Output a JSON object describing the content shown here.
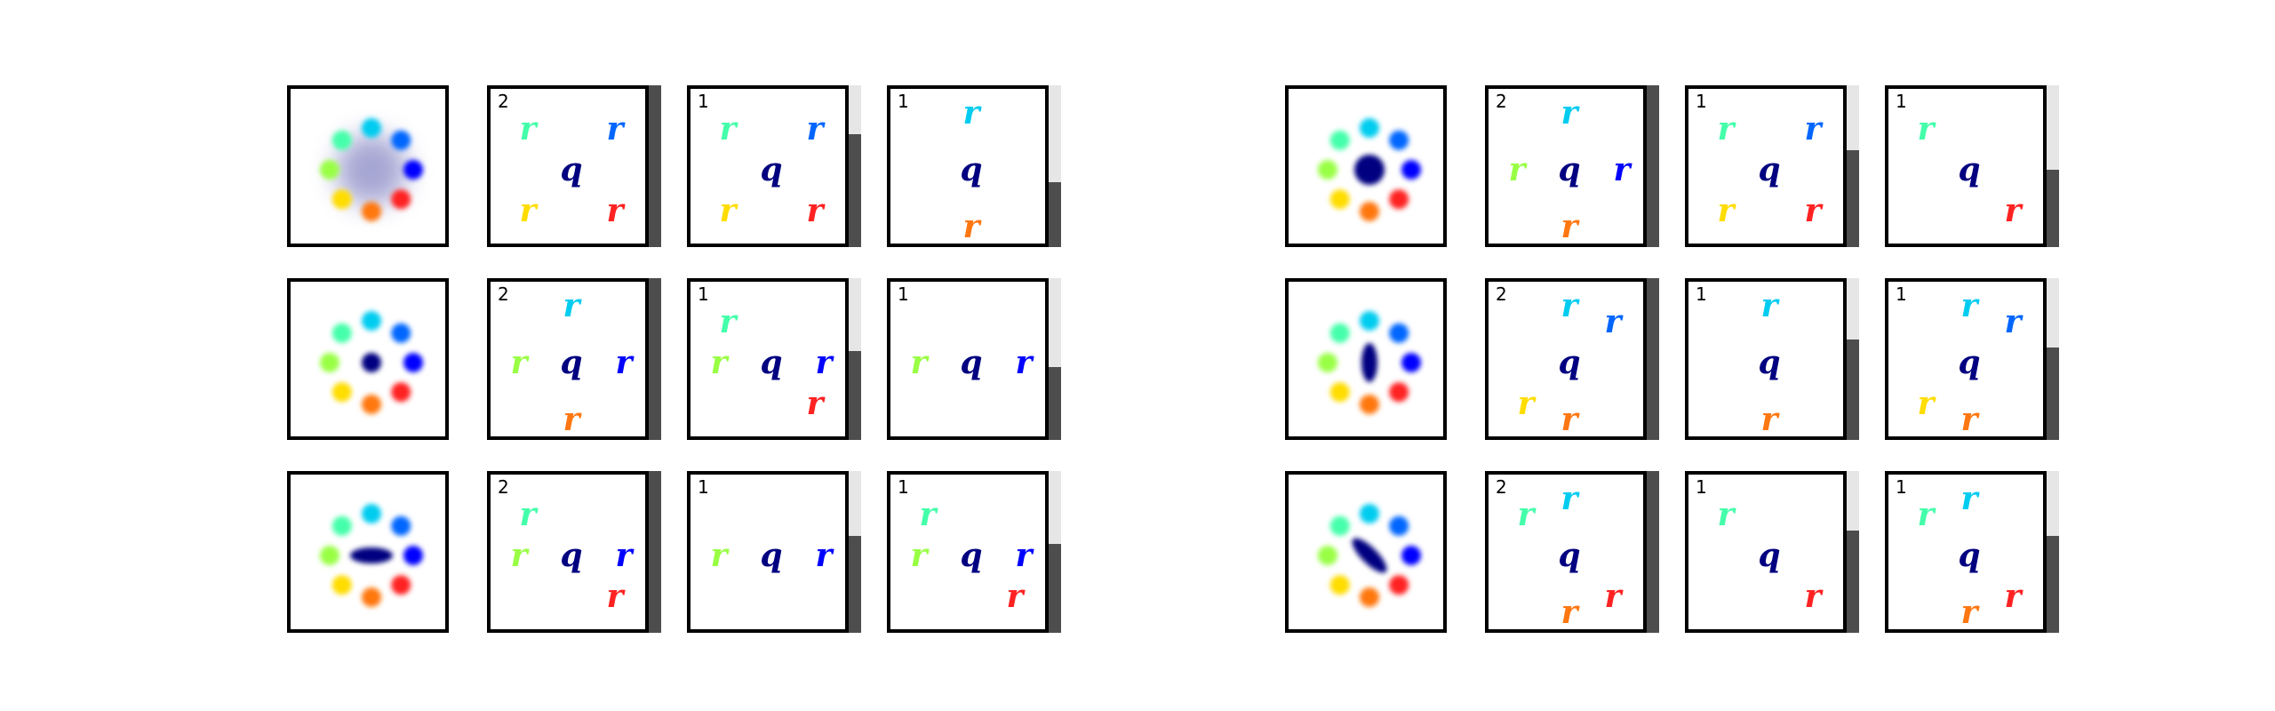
{
  "colors": {
    "c0": "#00ccf0",
    "c1": "#0066ff",
    "c2": "#0000ff",
    "c3": "#ff2222",
    "c4": "#ff7711",
    "c5": "#ffdd00",
    "c6": "#99ff44",
    "c7": "#44ffaa",
    "center": "#000080",
    "bar_fill": "#4d4d4d",
    "bar_track": "#e6e6e6"
  },
  "source_symbol": "r",
  "target_symbol": "q",
  "groups": [
    {
      "rows": [
        {
          "scene": {
            "center_shape": "diffuse-cloud"
          },
          "steps": [
            {
              "count": "2",
              "bar_level": 1.0,
              "sources": [
                7,
                1,
                5,
                3
              ]
            },
            {
              "count": "1",
              "bar_level": 0.7,
              "sources": [
                7,
                1,
                5,
                3
              ]
            },
            {
              "count": "1",
              "bar_level": 0.4,
              "sources": [
                0,
                4
              ]
            }
          ]
        },
        {
          "scene": {
            "center_shape": "small-dot"
          },
          "steps": [
            {
              "count": "2",
              "bar_level": 1.0,
              "sources": [
                0,
                6,
                2,
                4
              ]
            },
            {
              "count": "1",
              "bar_level": 0.55,
              "sources": [
                7,
                6,
                2,
                3
              ]
            },
            {
              "count": "1",
              "bar_level": 0.45,
              "sources": [
                6,
                2
              ]
            }
          ]
        },
        {
          "scene": {
            "center_shape": "horizontal-ellipse"
          },
          "steps": [
            {
              "count": "2",
              "bar_level": 1.0,
              "sources": [
                7,
                6,
                2,
                3
              ]
            },
            {
              "count": "1",
              "bar_level": 0.6,
              "sources": [
                6,
                2
              ]
            },
            {
              "count": "1",
              "bar_level": 0.55,
              "sources": [
                7,
                6,
                2,
                3
              ]
            }
          ]
        }
      ]
    },
    {
      "rows": [
        {
          "scene": {
            "center_shape": "large-dot"
          },
          "steps": [
            {
              "count": "2",
              "bar_level": 1.0,
              "sources": [
                0,
                6,
                2,
                4
              ]
            },
            {
              "count": "1",
              "bar_level": 0.6,
              "sources": [
                7,
                1,
                5,
                3
              ]
            },
            {
              "count": "1",
              "bar_level": 0.48,
              "sources": [
                7,
                3
              ]
            }
          ]
        },
        {
          "scene": {
            "center_shape": "vertical-ellipse"
          },
          "steps": [
            {
              "count": "2",
              "bar_level": 1.0,
              "sources": [
                0,
                1,
                5,
                4
              ]
            },
            {
              "count": "1",
              "bar_level": 0.62,
              "sources": [
                0,
                4
              ]
            },
            {
              "count": "1",
              "bar_level": 0.57,
              "sources": [
                0,
                1,
                5,
                4
              ]
            }
          ]
        },
        {
          "scene": {
            "center_shape": "diagonal-ellipse"
          },
          "steps": [
            {
              "count": "2",
              "bar_level": 1.0,
              "sources": [
                7,
                0,
                4,
                3
              ]
            },
            {
              "count": "1",
              "bar_level": 0.63,
              "sources": [
                7,
                3
              ]
            },
            {
              "count": "1",
              "bar_level": 0.6,
              "sources": [
                7,
                0,
                4,
                3
              ]
            }
          ]
        }
      ]
    }
  ]
}
